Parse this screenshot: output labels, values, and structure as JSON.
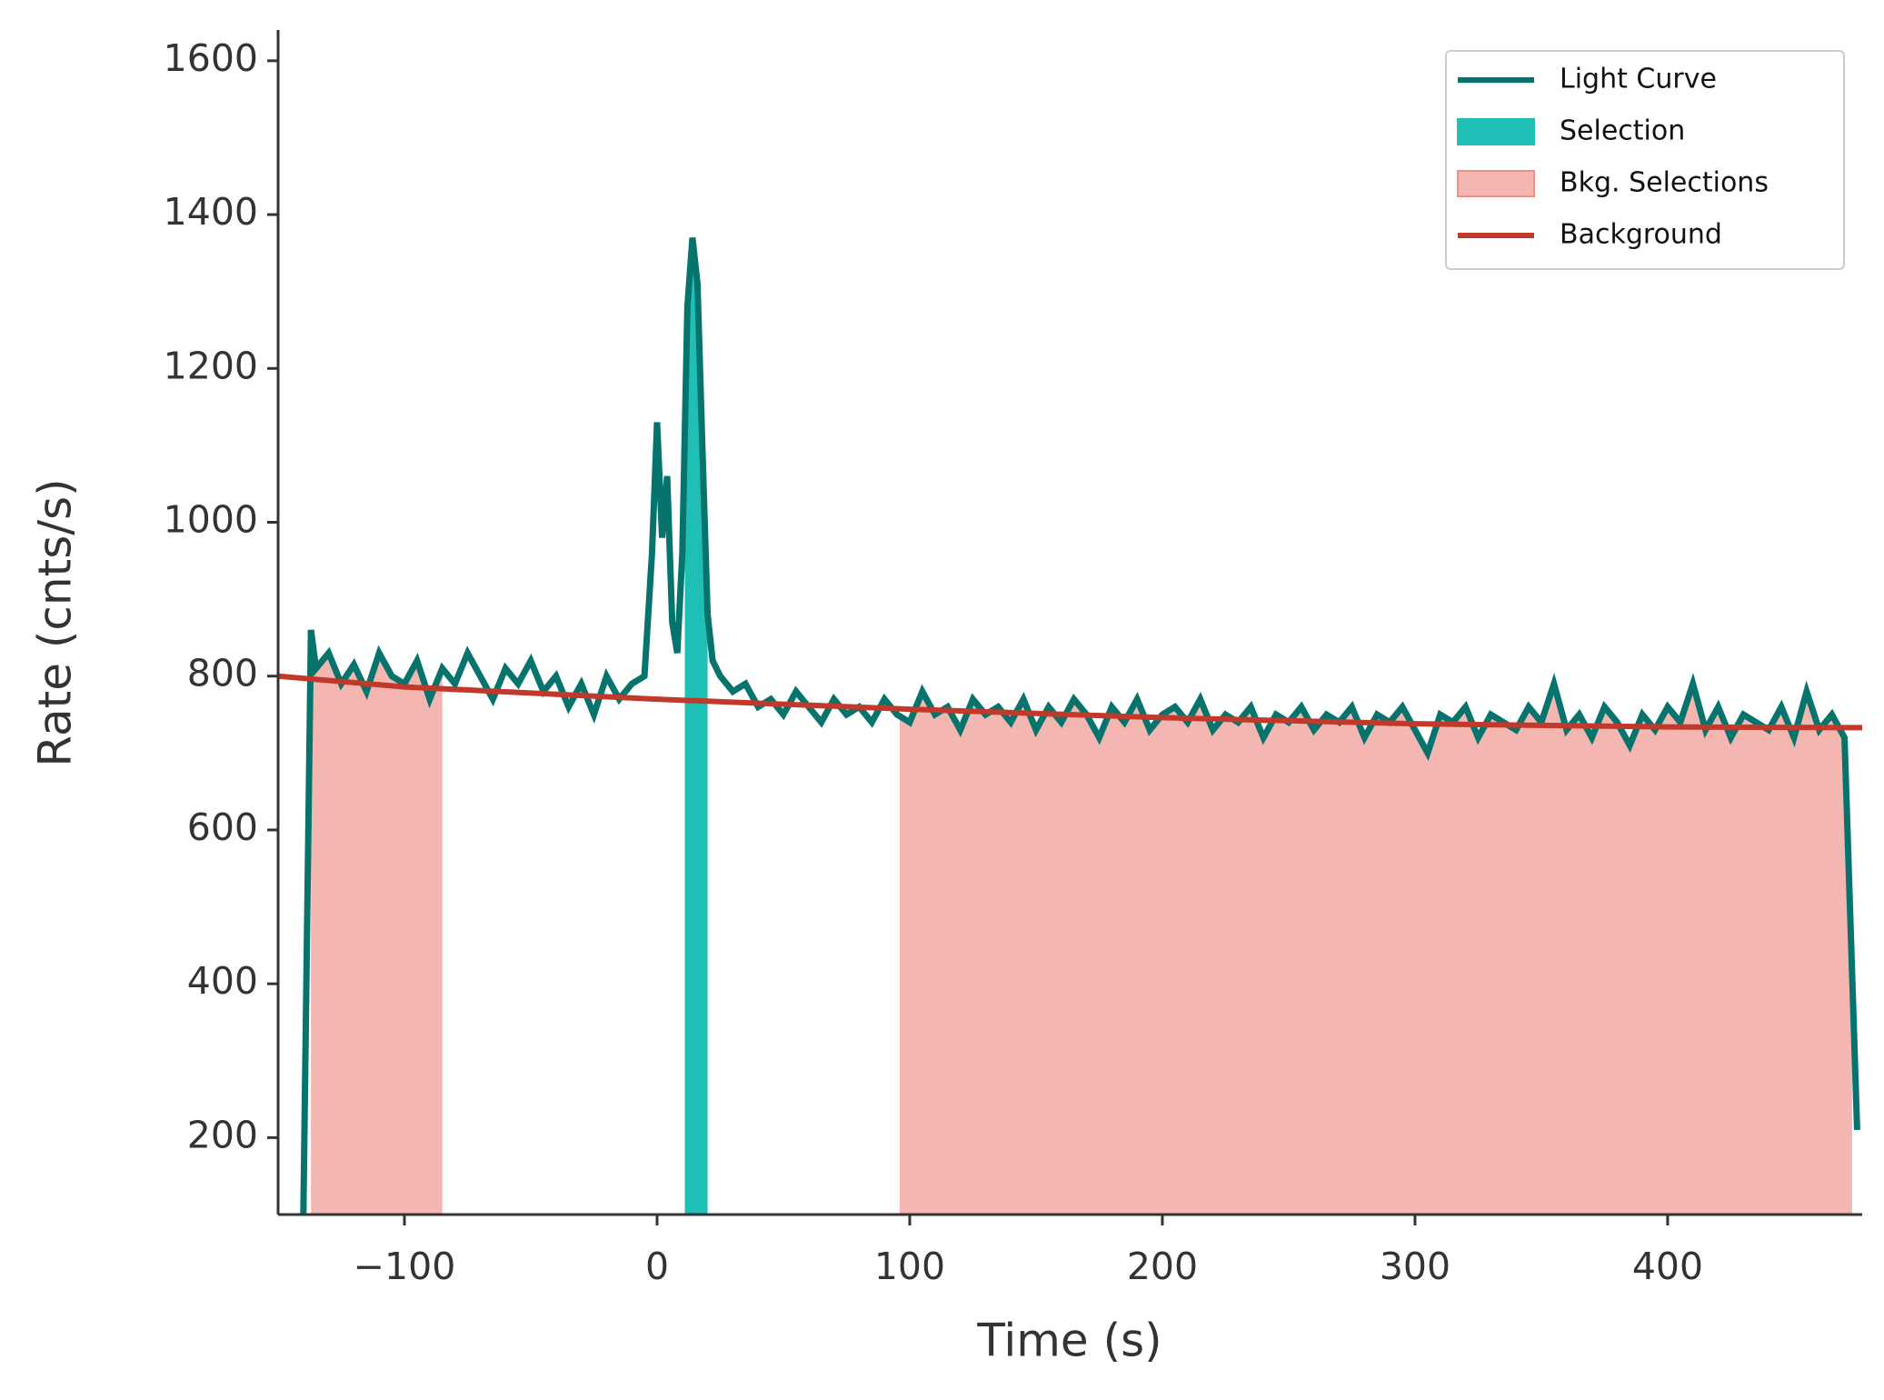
{
  "chart_data": {
    "type": "line",
    "xlabel": "Time (s)",
    "ylabel": "Rate (cnts/s)",
    "xlim": [
      -150,
      477
    ],
    "ylim": [
      100,
      1640
    ],
    "xticks": [
      {
        "value": -100,
        "label": "−100"
      },
      0,
      100,
      200,
      300,
      400
    ],
    "yticks": [
      200,
      400,
      600,
      800,
      1000,
      1200,
      1400,
      1600
    ],
    "legend": "upper right",
    "x": [
      -140,
      -137,
      -135,
      -130,
      -125,
      -120,
      -115,
      -110,
      -105,
      -100,
      -95,
      -90,
      -85,
      -80,
      -75,
      -70,
      -65,
      -60,
      -55,
      -50,
      -45,
      -40,
      -35,
      -30,
      -25,
      -20,
      -15,
      -10,
      -5,
      -2,
      0,
      2,
      4,
      6,
      8,
      10,
      12,
      14,
      16,
      18,
      20,
      22,
      25,
      30,
      35,
      40,
      45,
      50,
      55,
      60,
      65,
      70,
      75,
      80,
      85,
      90,
      95,
      100,
      105,
      110,
      115,
      120,
      125,
      130,
      135,
      140,
      145,
      150,
      155,
      160,
      165,
      170,
      175,
      180,
      185,
      190,
      195,
      200,
      205,
      210,
      215,
      220,
      225,
      230,
      235,
      240,
      245,
      250,
      255,
      260,
      265,
      270,
      275,
      280,
      285,
      290,
      295,
      300,
      305,
      310,
      315,
      320,
      325,
      330,
      335,
      340,
      345,
      350,
      355,
      360,
      365,
      370,
      375,
      380,
      385,
      390,
      395,
      400,
      405,
      410,
      415,
      420,
      425,
      430,
      435,
      440,
      445,
      450,
      455,
      460,
      465,
      470,
      475
    ],
    "series": [
      {
        "name": "Light Curve",
        "color": "#06746c",
        "values": [
          100,
          860,
          810,
          830,
          790,
          815,
          780,
          830,
          800,
          790,
          820,
          770,
          810,
          790,
          830,
          800,
          770,
          810,
          790,
          820,
          780,
          800,
          760,
          790,
          750,
          800,
          770,
          790,
          800,
          960,
          1130,
          980,
          1060,
          870,
          830,
          960,
          1280,
          1370,
          1310,
          1090,
          880,
          820,
          800,
          780,
          790,
          760,
          770,
          750,
          780,
          760,
          740,
          770,
          750,
          760,
          740,
          770,
          750,
          740,
          780,
          750,
          760,
          730,
          770,
          750,
          760,
          740,
          770,
          730,
          760,
          740,
          770,
          750,
          720,
          760,
          740,
          770,
          730,
          750,
          760,
          740,
          770,
          730,
          750,
          740,
          760,
          720,
          750,
          740,
          760,
          730,
          750,
          740,
          760,
          720,
          750,
          740,
          760,
          730,
          700,
          750,
          740,
          760,
          720,
          750,
          740,
          730,
          760,
          740,
          790,
          730,
          750,
          720,
          760,
          740,
          710,
          750,
          730,
          760,
          740,
          790,
          730,
          760,
          720,
          750,
          740,
          730,
          760,
          720,
          780,
          730,
          750,
          720,
          210
        ]
      },
      {
        "name": "Background",
        "color": "#c0392b",
        "x": [
          -150,
          -100,
          0,
          100,
          200,
          300,
          400,
          477
        ],
        "values": [
          800,
          786,
          770,
          757,
          746,
          738,
          734,
          733
        ]
      }
    ],
    "selection": {
      "name": "Selection",
      "color": "#20bfb5",
      "range": [
        11,
        20
      ]
    },
    "bkg_selections": {
      "name": "Bkg. Selections",
      "color": "#f4b6b1",
      "ranges": [
        [
          -137,
          -85
        ],
        [
          96,
          473
        ]
      ]
    }
  }
}
